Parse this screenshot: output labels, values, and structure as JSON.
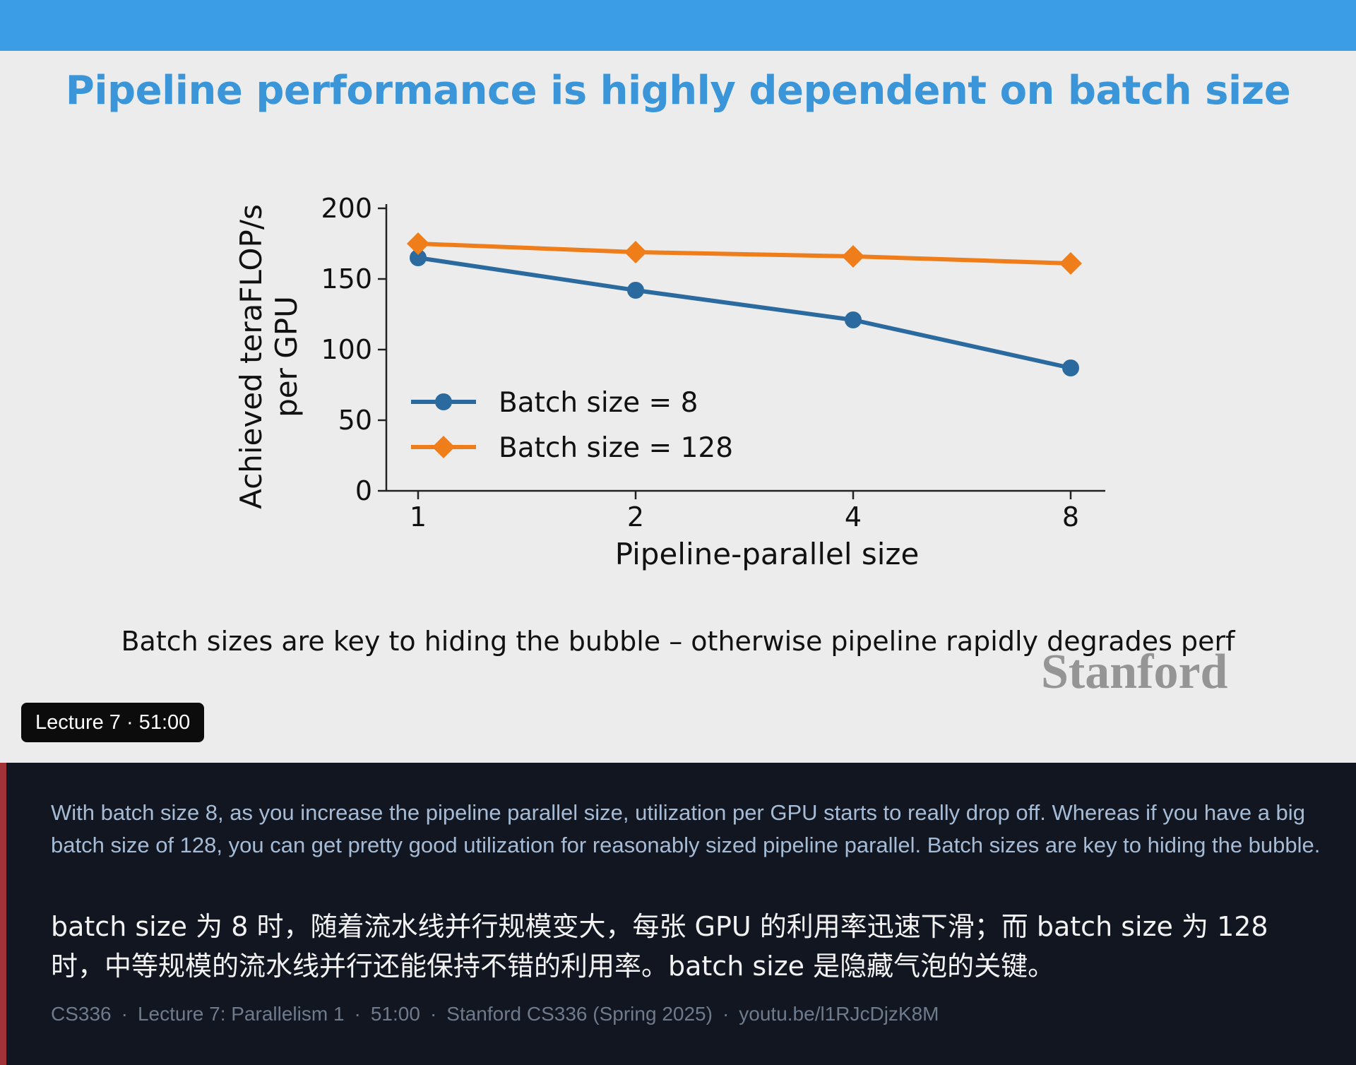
{
  "slide": {
    "title": "Pipeline performance is highly dependent on batch size",
    "caption": "Batch sizes are key to hiding the bubble – otherwise pipeline rapidly degrades perf",
    "logo": "Stanford",
    "colors": {
      "topbar": "#3b9de6",
      "title": "#3a96d8"
    }
  },
  "badge": {
    "text": "Lecture 7 · 51:00"
  },
  "chart_data": {
    "type": "line",
    "title": "",
    "xlabel": "Pipeline-parallel size",
    "ylabel_lines": [
      "Achieved teraFLOP/s",
      "per GPU"
    ],
    "categories": [
      "1",
      "2",
      "4",
      "8"
    ],
    "y_ticks": [
      "0",
      "50",
      "100",
      "150",
      "200"
    ],
    "ylim": [
      0,
      200
    ],
    "grid": false,
    "legend_position": "lower-left",
    "series": [
      {
        "name": "Batch size = 8",
        "values": [
          165,
          142,
          121,
          87
        ],
        "color": "#2b6a9e",
        "marker": "circle"
      },
      {
        "name": "Batch size = 128",
        "values": [
          175,
          169,
          166,
          161
        ],
        "color": "#ef7d1a",
        "marker": "diamond"
      }
    ]
  },
  "transcript": {
    "english": "With batch size 8, as you increase the pipeline parallel size, utilization per GPU starts to really drop off. Whereas if you have a big batch size of 128, you can get pretty good utilization for reasonably sized pipeline parallel. Batch sizes are key to hiding the bubble.",
    "chinese": "batch size 为 8 时，随着流水线并行规模变大，每张 GPU 的利用率迅速下滑；而 batch size 为 128 时，中等规模的流水线并行还能保持不错的利用率。batch size 是隐藏气泡的关键。",
    "meta": {
      "course": "CS336",
      "lecture": "Lecture 7: Parallelism 1",
      "time": "51:00",
      "source": "Stanford CS336 (Spring 2025)",
      "link": "youtu.be/l1RJcDjzK8M"
    },
    "colors": {
      "panel": "#111621",
      "accent": "#a03238",
      "english": "#a6bcd6",
      "meta": "#6e7b8c"
    }
  }
}
